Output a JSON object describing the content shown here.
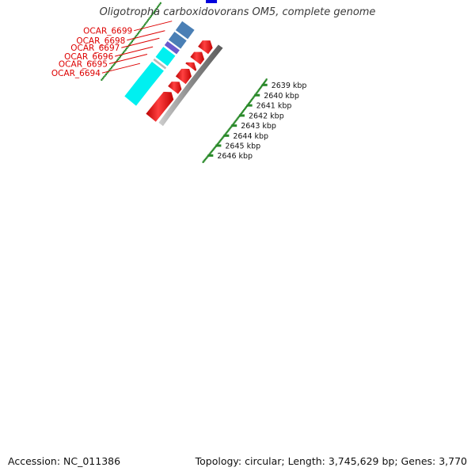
{
  "title": "Oligotropha carboxidovorans OM5, complete genome",
  "footer": {
    "accession": "Accession: NC_011386",
    "summary": "Topology: circular; Length: 3,745,629 bp; Genes: 3,770"
  },
  "colors": {
    "label_red": "#dd0000",
    "forward_gene": "#ff0000",
    "backbone": "#888888",
    "scale_ticks": "#2a8a2a",
    "scale_text": "#111111"
  },
  "scale_labels": [
    "2646 kbp",
    "2645 kbp",
    "2644 kbp",
    "2643 kbp",
    "2642 kbp",
    "2641 kbp",
    "2640 kbp",
    "2639 kbp"
  ],
  "genes": [
    {
      "id": "OCAR_6699",
      "strand": "reverse",
      "color": "#4a7fb5"
    },
    {
      "id": "OCAR_6698",
      "strand": "reverse",
      "color": "#4a7fb5"
    },
    {
      "id": "OCAR_6697",
      "strand": "reverse",
      "color": "#6a5acd"
    },
    {
      "id": "OCAR_6696",
      "strand": "reverse",
      "color": "#00f0f0"
    },
    {
      "id": "OCAR_6695",
      "strand": "reverse",
      "color": "#b8b8b8"
    },
    {
      "id": "OCAR_6694",
      "strand": "reverse",
      "color": "#00f0f0"
    }
  ]
}
